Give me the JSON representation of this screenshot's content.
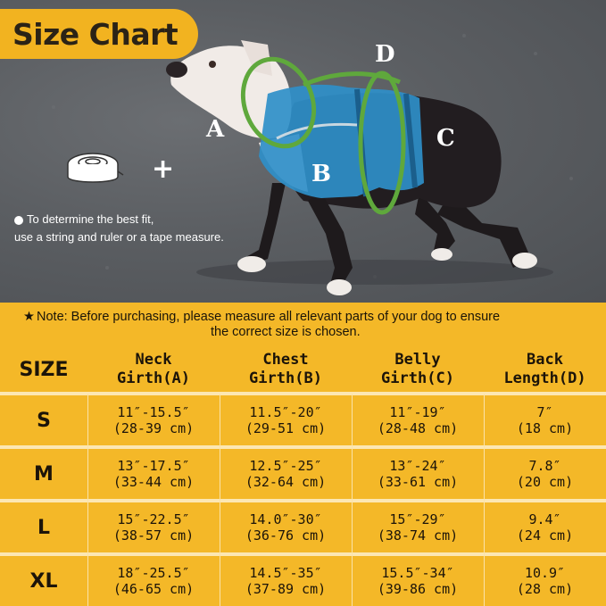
{
  "title": "Size Chart",
  "diagram_labels": {
    "a": "A",
    "b": "B",
    "c": "C",
    "d": "D"
  },
  "tip": {
    "line1": "To determine the best fit,",
    "line2": "use a string and ruler or a tape measure."
  },
  "plus": "+",
  "note": {
    "star": "★",
    "line1": "Note: Before purchasing, please measure all relevant parts of your dog to ensure",
    "line2": "the correct size is chosen."
  },
  "table": {
    "size_header": "SIZE",
    "headers": [
      {
        "line1": "Neck",
        "line2": "Girth(A)"
      },
      {
        "line1": "Chest",
        "line2": "Girth(B)"
      },
      {
        "line1": "Belly",
        "line2": "Girth(C)"
      },
      {
        "line1": "Back",
        "line2": "Length(D)"
      }
    ],
    "rows": [
      {
        "size": "S",
        "cells": [
          [
            "11″-15.5″",
            "(28-39 cm)"
          ],
          [
            "11.5″-20″",
            "(29-51 cm)"
          ],
          [
            "11″-19″",
            "(28-48 cm)"
          ],
          [
            "7″",
            "(18 cm)"
          ]
        ]
      },
      {
        "size": "M",
        "cells": [
          [
            "13″-17.5″",
            "(33-44 cm)"
          ],
          [
            "12.5″-25″",
            "(32-64 cm)"
          ],
          [
            "13″-24″",
            "(33-61 cm)"
          ],
          [
            "7.8″",
            "(20 cm)"
          ]
        ]
      },
      {
        "size": "L",
        "cells": [
          [
            "15″-22.5″",
            "(38-57 cm)"
          ],
          [
            "14.0″-30″",
            "(36-76 cm)"
          ],
          [
            "15″-29″",
            "(38-74 cm)"
          ],
          [
            "9.4″",
            "(24 cm)"
          ]
        ]
      },
      {
        "size": "XL",
        "cells": [
          [
            "18″-25.5″",
            "(46-65 cm)"
          ],
          [
            "14.5″-35″",
            "(37-89 cm)"
          ],
          [
            "15.5″-34″",
            "(39-86 cm)"
          ],
          [
            "10.9″",
            "(28 cm)"
          ]
        ]
      }
    ]
  },
  "colors": {
    "accent": "#f4b828",
    "badge": "#f2b320",
    "harness": "#2f8fc9",
    "measure_line": "#5fa83c"
  }
}
